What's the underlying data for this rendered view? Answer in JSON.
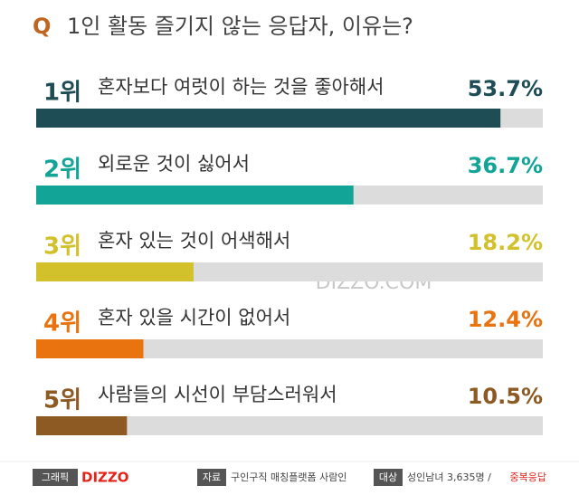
{
  "chart_data": {
    "type": "bar",
    "title_prefix": "Q",
    "title": "1인 활동 즐기지 않는 응답자, 이유는?",
    "ranks": [
      "1위",
      "2위",
      "3위",
      "4위",
      "5위"
    ],
    "categories": [
      "혼자보다 여럿이 하는 것을 좋아해서",
      "외로운 것이 싫어서",
      "혼자 있는 것이 어색해서",
      "혼자 있을 시간이 없어서",
      "사람들의 시선이 부담스러워서"
    ],
    "values": [
      53.7,
      36.7,
      18.2,
      12.4,
      10.5
    ],
    "value_labels": [
      "53.7%",
      "36.7%",
      "18.2%",
      "12.4%",
      "10.5%"
    ],
    "colors": [
      "#1f4d55",
      "#12a597",
      "#d3c12b",
      "#e8730f",
      "#8c5a22"
    ],
    "label_colors": [
      "#1f4d55",
      "#12a597",
      "#d3c12b",
      "#e8730f",
      "#8c5a22"
    ],
    "track_color": "#dcdcdc",
    "xlim": [
      0,
      58.6
    ],
    "watermark": "DIZZO.COM",
    "footer": {
      "graphic_tag": "그래픽",
      "brand": "DIZZO",
      "source_tag": "자료",
      "source": "구인구직 매칭플랫폼 사람인",
      "target_tag": "대상",
      "target": "성인남녀 3,635명 /",
      "note": "중복응답"
    }
  }
}
